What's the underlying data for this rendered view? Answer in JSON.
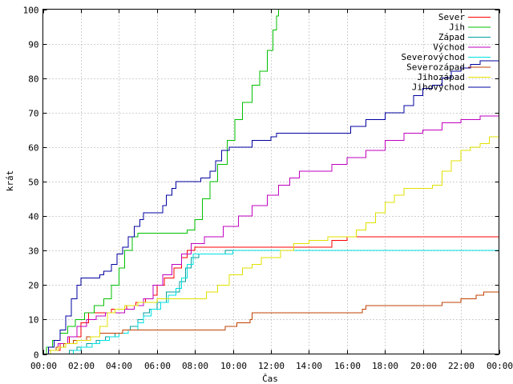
{
  "chart_data": {
    "type": "line",
    "title": "",
    "xlabel": "Čas",
    "ylabel": "krát",
    "grid": true,
    "legend_position": "top-right",
    "ylim": [
      0,
      100
    ],
    "yticks": [
      "0",
      "10",
      "20",
      "30",
      "40",
      "50",
      "60",
      "70",
      "80",
      "90",
      "100"
    ],
    "xticks": [
      "00:00",
      "02:00",
      "04:00",
      "06:00",
      "08:00",
      "10:00",
      "12:00",
      "14:00",
      "16:00",
      "18:00",
      "20:00",
      "22:00",
      "00:00"
    ],
    "xlim_hours": [
      0,
      24
    ],
    "series": [
      {
        "name": "Sever",
        "color": "#ff0000",
        "points": [
          [
            0,
            0
          ],
          [
            0.4,
            1
          ],
          [
            0.9,
            3
          ],
          [
            1.4,
            5
          ],
          [
            2.0,
            9
          ],
          [
            2.4,
            12
          ],
          [
            3.0,
            12
          ],
          [
            3.6,
            13
          ],
          [
            4.0,
            13
          ],
          [
            4.4,
            14
          ],
          [
            4.9,
            15
          ],
          [
            5.4,
            16
          ],
          [
            5.8,
            17
          ],
          [
            6.0,
            20
          ],
          [
            6.4,
            22
          ],
          [
            6.9,
            25
          ],
          [
            7.3,
            28
          ],
          [
            7.6,
            30
          ],
          [
            8.0,
            31
          ],
          [
            9.0,
            31
          ],
          [
            10.0,
            31
          ],
          [
            12.0,
            31
          ],
          [
            14.0,
            31
          ],
          [
            15.0,
            31
          ],
          [
            15.2,
            33
          ],
          [
            16.0,
            34
          ],
          [
            18.0,
            34
          ],
          [
            20.0,
            34
          ],
          [
            22.0,
            34
          ],
          [
            24.0,
            34
          ]
        ]
      },
      {
        "name": "Jih",
        "color": "#00c000",
        "points": [
          [
            0,
            0
          ],
          [
            0.2,
            2
          ],
          [
            0.5,
            4
          ],
          [
            0.9,
            6
          ],
          [
            1.3,
            8
          ],
          [
            1.7,
            10
          ],
          [
            2.2,
            12
          ],
          [
            2.7,
            14
          ],
          [
            3.2,
            16
          ],
          [
            3.6,
            20
          ],
          [
            4.0,
            25
          ],
          [
            4.3,
            30
          ],
          [
            4.7,
            34
          ],
          [
            5.0,
            35
          ],
          [
            6.0,
            35
          ],
          [
            7.0,
            35
          ],
          [
            7.6,
            36
          ],
          [
            8.0,
            39
          ],
          [
            8.4,
            45
          ],
          [
            8.8,
            50
          ],
          [
            9.2,
            55
          ],
          [
            9.7,
            62
          ],
          [
            10.1,
            68
          ],
          [
            10.5,
            73
          ],
          [
            11.0,
            78
          ],
          [
            11.4,
            82
          ],
          [
            11.8,
            88
          ],
          [
            12.1,
            94
          ],
          [
            12.3,
            98
          ],
          [
            12.4,
            100
          ]
        ]
      },
      {
        "name": "Západ",
        "color": "#00a0a0",
        "points": [
          [
            0,
            0
          ],
          [
            1.0,
            0
          ],
          [
            1.4,
            1
          ],
          [
            1.8,
            2
          ],
          [
            2.3,
            3
          ],
          [
            2.8,
            4
          ],
          [
            3.3,
            5
          ],
          [
            3.8,
            6
          ],
          [
            4.2,
            7
          ],
          [
            4.6,
            8
          ],
          [
            5.0,
            10
          ],
          [
            5.3,
            12
          ],
          [
            5.6,
            13
          ],
          [
            6.0,
            15
          ],
          [
            6.5,
            18
          ],
          [
            7.0,
            18
          ],
          [
            7.2,
            21
          ],
          [
            7.5,
            25
          ],
          [
            7.8,
            28
          ],
          [
            8.2,
            29
          ],
          [
            9.0,
            29
          ],
          [
            9.6,
            30
          ],
          [
            12.0,
            30
          ],
          [
            16.0,
            30
          ],
          [
            20.0,
            30
          ],
          [
            24.0,
            30
          ]
        ]
      },
      {
        "name": "Východ",
        "color": "#c000c0",
        "points": [
          [
            0,
            0
          ],
          [
            0.3,
            1
          ],
          [
            0.8,
            3
          ],
          [
            1.3,
            5
          ],
          [
            1.8,
            8
          ],
          [
            2.3,
            10
          ],
          [
            2.8,
            11
          ],
          [
            3.3,
            12
          ],
          [
            3.8,
            12
          ],
          [
            4.3,
            13
          ],
          [
            4.8,
            14
          ],
          [
            5.3,
            16
          ],
          [
            5.8,
            20
          ],
          [
            6.3,
            23
          ],
          [
            6.8,
            26
          ],
          [
            7.3,
            29
          ],
          [
            7.8,
            32
          ],
          [
            8.5,
            34
          ],
          [
            9.5,
            37
          ],
          [
            10.3,
            40
          ],
          [
            11.0,
            43
          ],
          [
            11.8,
            46
          ],
          [
            12.4,
            49
          ],
          [
            13.0,
            51
          ],
          [
            13.5,
            53
          ],
          [
            14.5,
            53
          ],
          [
            15.2,
            55
          ],
          [
            16.0,
            57
          ],
          [
            17.0,
            59
          ],
          [
            18.0,
            62
          ],
          [
            19.0,
            64
          ],
          [
            20.0,
            65
          ],
          [
            21.0,
            67
          ],
          [
            22.0,
            68
          ],
          [
            23.0,
            69
          ],
          [
            24.0,
            69
          ]
        ]
      },
      {
        "name": "Severovýchod",
        "color": "#00e0e0",
        "points": [
          [
            0,
            0
          ],
          [
            1.2,
            0
          ],
          [
            1.6,
            1
          ],
          [
            2.0,
            2
          ],
          [
            2.6,
            3
          ],
          [
            3.0,
            4
          ],
          [
            3.5,
            5
          ],
          [
            4.0,
            6
          ],
          [
            4.5,
            7
          ],
          [
            5.0,
            9
          ],
          [
            5.3,
            11
          ],
          [
            5.7,
            13
          ],
          [
            6.2,
            15
          ],
          [
            6.6,
            17
          ],
          [
            7.0,
            19
          ],
          [
            7.3,
            22
          ],
          [
            7.6,
            26
          ],
          [
            7.9,
            29
          ],
          [
            9.0,
            29
          ],
          [
            10.0,
            30
          ],
          [
            12.0,
            30
          ],
          [
            16.0,
            30
          ],
          [
            20.0,
            30
          ],
          [
            24.0,
            30
          ]
        ]
      },
      {
        "name": "Severozápad",
        "color": "#c04000",
        "points": [
          [
            0,
            0
          ],
          [
            0.3,
            1
          ],
          [
            0.7,
            2
          ],
          [
            1.1,
            3
          ],
          [
            1.6,
            4
          ],
          [
            2.3,
            5
          ],
          [
            3.0,
            6
          ],
          [
            3.6,
            6
          ],
          [
            4.2,
            7
          ],
          [
            5.0,
            7
          ],
          [
            6.0,
            7
          ],
          [
            7.0,
            7
          ],
          [
            8.0,
            7
          ],
          [
            9.0,
            7
          ],
          [
            9.6,
            8
          ],
          [
            10.2,
            9
          ],
          [
            10.9,
            10
          ],
          [
            11.0,
            12
          ],
          [
            12.0,
            12
          ],
          [
            14.0,
            12
          ],
          [
            16.0,
            12
          ],
          [
            16.8,
            13
          ],
          [
            17.0,
            14
          ],
          [
            18.0,
            14
          ],
          [
            20.0,
            14
          ],
          [
            21.0,
            15
          ],
          [
            22.0,
            16
          ],
          [
            22.8,
            17
          ],
          [
            23.2,
            18
          ],
          [
            24.0,
            18
          ]
        ]
      },
      {
        "name": "Jihozápad",
        "color": "#e0e000",
        "points": [
          [
            0,
            0
          ],
          [
            0.4,
            1
          ],
          [
            0.8,
            2
          ],
          [
            1.2,
            3
          ],
          [
            1.8,
            4
          ],
          [
            2.5,
            5
          ],
          [
            3.0,
            8
          ],
          [
            3.4,
            12
          ],
          [
            3.8,
            13
          ],
          [
            4.3,
            14
          ],
          [
            5.0,
            15
          ],
          [
            6.0,
            16
          ],
          [
            7.0,
            16
          ],
          [
            8.0,
            16
          ],
          [
            8.6,
            18
          ],
          [
            9.2,
            20
          ],
          [
            9.8,
            23
          ],
          [
            10.5,
            25
          ],
          [
            11.0,
            26
          ],
          [
            11.5,
            28
          ],
          [
            12.0,
            28
          ],
          [
            12.5,
            30
          ],
          [
            13.2,
            32
          ],
          [
            14.0,
            33
          ],
          [
            15.0,
            34
          ],
          [
            16.0,
            34
          ],
          [
            16.5,
            36
          ],
          [
            17.0,
            38
          ],
          [
            17.5,
            41
          ],
          [
            18.0,
            44
          ],
          [
            18.5,
            46
          ],
          [
            19.0,
            48
          ],
          [
            20.5,
            49
          ],
          [
            21.0,
            53
          ],
          [
            21.5,
            56
          ],
          [
            22.0,
            59
          ],
          [
            22.5,
            60
          ],
          [
            23.0,
            61
          ],
          [
            23.5,
            63
          ],
          [
            24.0,
            66
          ]
        ]
      },
      {
        "name": "Jihovýchod",
        "color": "#0000a0",
        "points": [
          [
            0,
            0
          ],
          [
            0.3,
            2
          ],
          [
            0.6,
            4
          ],
          [
            0.9,
            7
          ],
          [
            1.2,
            11
          ],
          [
            1.5,
            16
          ],
          [
            1.8,
            20
          ],
          [
            2.0,
            22
          ],
          [
            3.0,
            23
          ],
          [
            3.2,
            24
          ],
          [
            3.6,
            26
          ],
          [
            3.9,
            29
          ],
          [
            4.2,
            31
          ],
          [
            4.5,
            34
          ],
          [
            4.8,
            37
          ],
          [
            5.1,
            39
          ],
          [
            5.3,
            41
          ],
          [
            6.0,
            41
          ],
          [
            6.3,
            43
          ],
          [
            6.5,
            46
          ],
          [
            6.8,
            48
          ],
          [
            7.0,
            50
          ],
          [
            8.0,
            50
          ],
          [
            8.3,
            51
          ],
          [
            8.8,
            53
          ],
          [
            9.1,
            56
          ],
          [
            9.4,
            59
          ],
          [
            9.8,
            60
          ],
          [
            10.5,
            60
          ],
          [
            11.0,
            62
          ],
          [
            12.0,
            63
          ],
          [
            12.3,
            64
          ],
          [
            13.0,
            64
          ],
          [
            14.0,
            64
          ],
          [
            15.0,
            64
          ],
          [
            16.0,
            64
          ],
          [
            16.2,
            66
          ],
          [
            17.0,
            68
          ],
          [
            18.0,
            70
          ],
          [
            19.0,
            72
          ],
          [
            19.5,
            75
          ],
          [
            20.0,
            77
          ],
          [
            20.5,
            78
          ],
          [
            21.0,
            80
          ],
          [
            21.5,
            82
          ],
          [
            22.0,
            83
          ],
          [
            22.5,
            84
          ],
          [
            23.0,
            85
          ],
          [
            24.0,
            85
          ]
        ]
      }
    ]
  }
}
